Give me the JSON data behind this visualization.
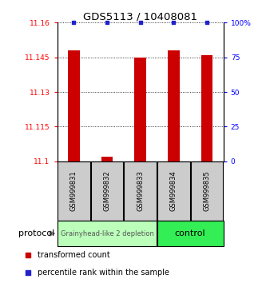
{
  "title": "GDS5113 / 10408081",
  "samples": [
    "GSM999831",
    "GSM999832",
    "GSM999833",
    "GSM999834",
    "GSM999835"
  ],
  "red_values": [
    11.148,
    11.102,
    11.145,
    11.148,
    11.146
  ],
  "blue_values": [
    100,
    100,
    100,
    100,
    100
  ],
  "ylim_left": [
    11.1,
    11.16
  ],
  "ylim_right": [
    0,
    100
  ],
  "yticks_left": [
    11.1,
    11.115,
    11.13,
    11.145,
    11.16
  ],
  "ytick_labels_left": [
    "11.1",
    "11.115",
    "11.13",
    "11.145",
    "11.16"
  ],
  "yticks_right": [
    0,
    25,
    50,
    75,
    100
  ],
  "ytick_labels_right": [
    "0",
    "25",
    "50",
    "75",
    "100%"
  ],
  "group1_label": "Grainyhead-like 2 depletion",
  "group1_n": 3,
  "group1_color": "#bbffbb",
  "group2_label": "control",
  "group2_n": 2,
  "group2_color": "#33ee55",
  "bar_color": "#cc0000",
  "blue_color": "#2222cc",
  "protocol_label": "protocol",
  "legend_red_label": "transformed count",
  "legend_blue_label": "percentile rank within the sample"
}
